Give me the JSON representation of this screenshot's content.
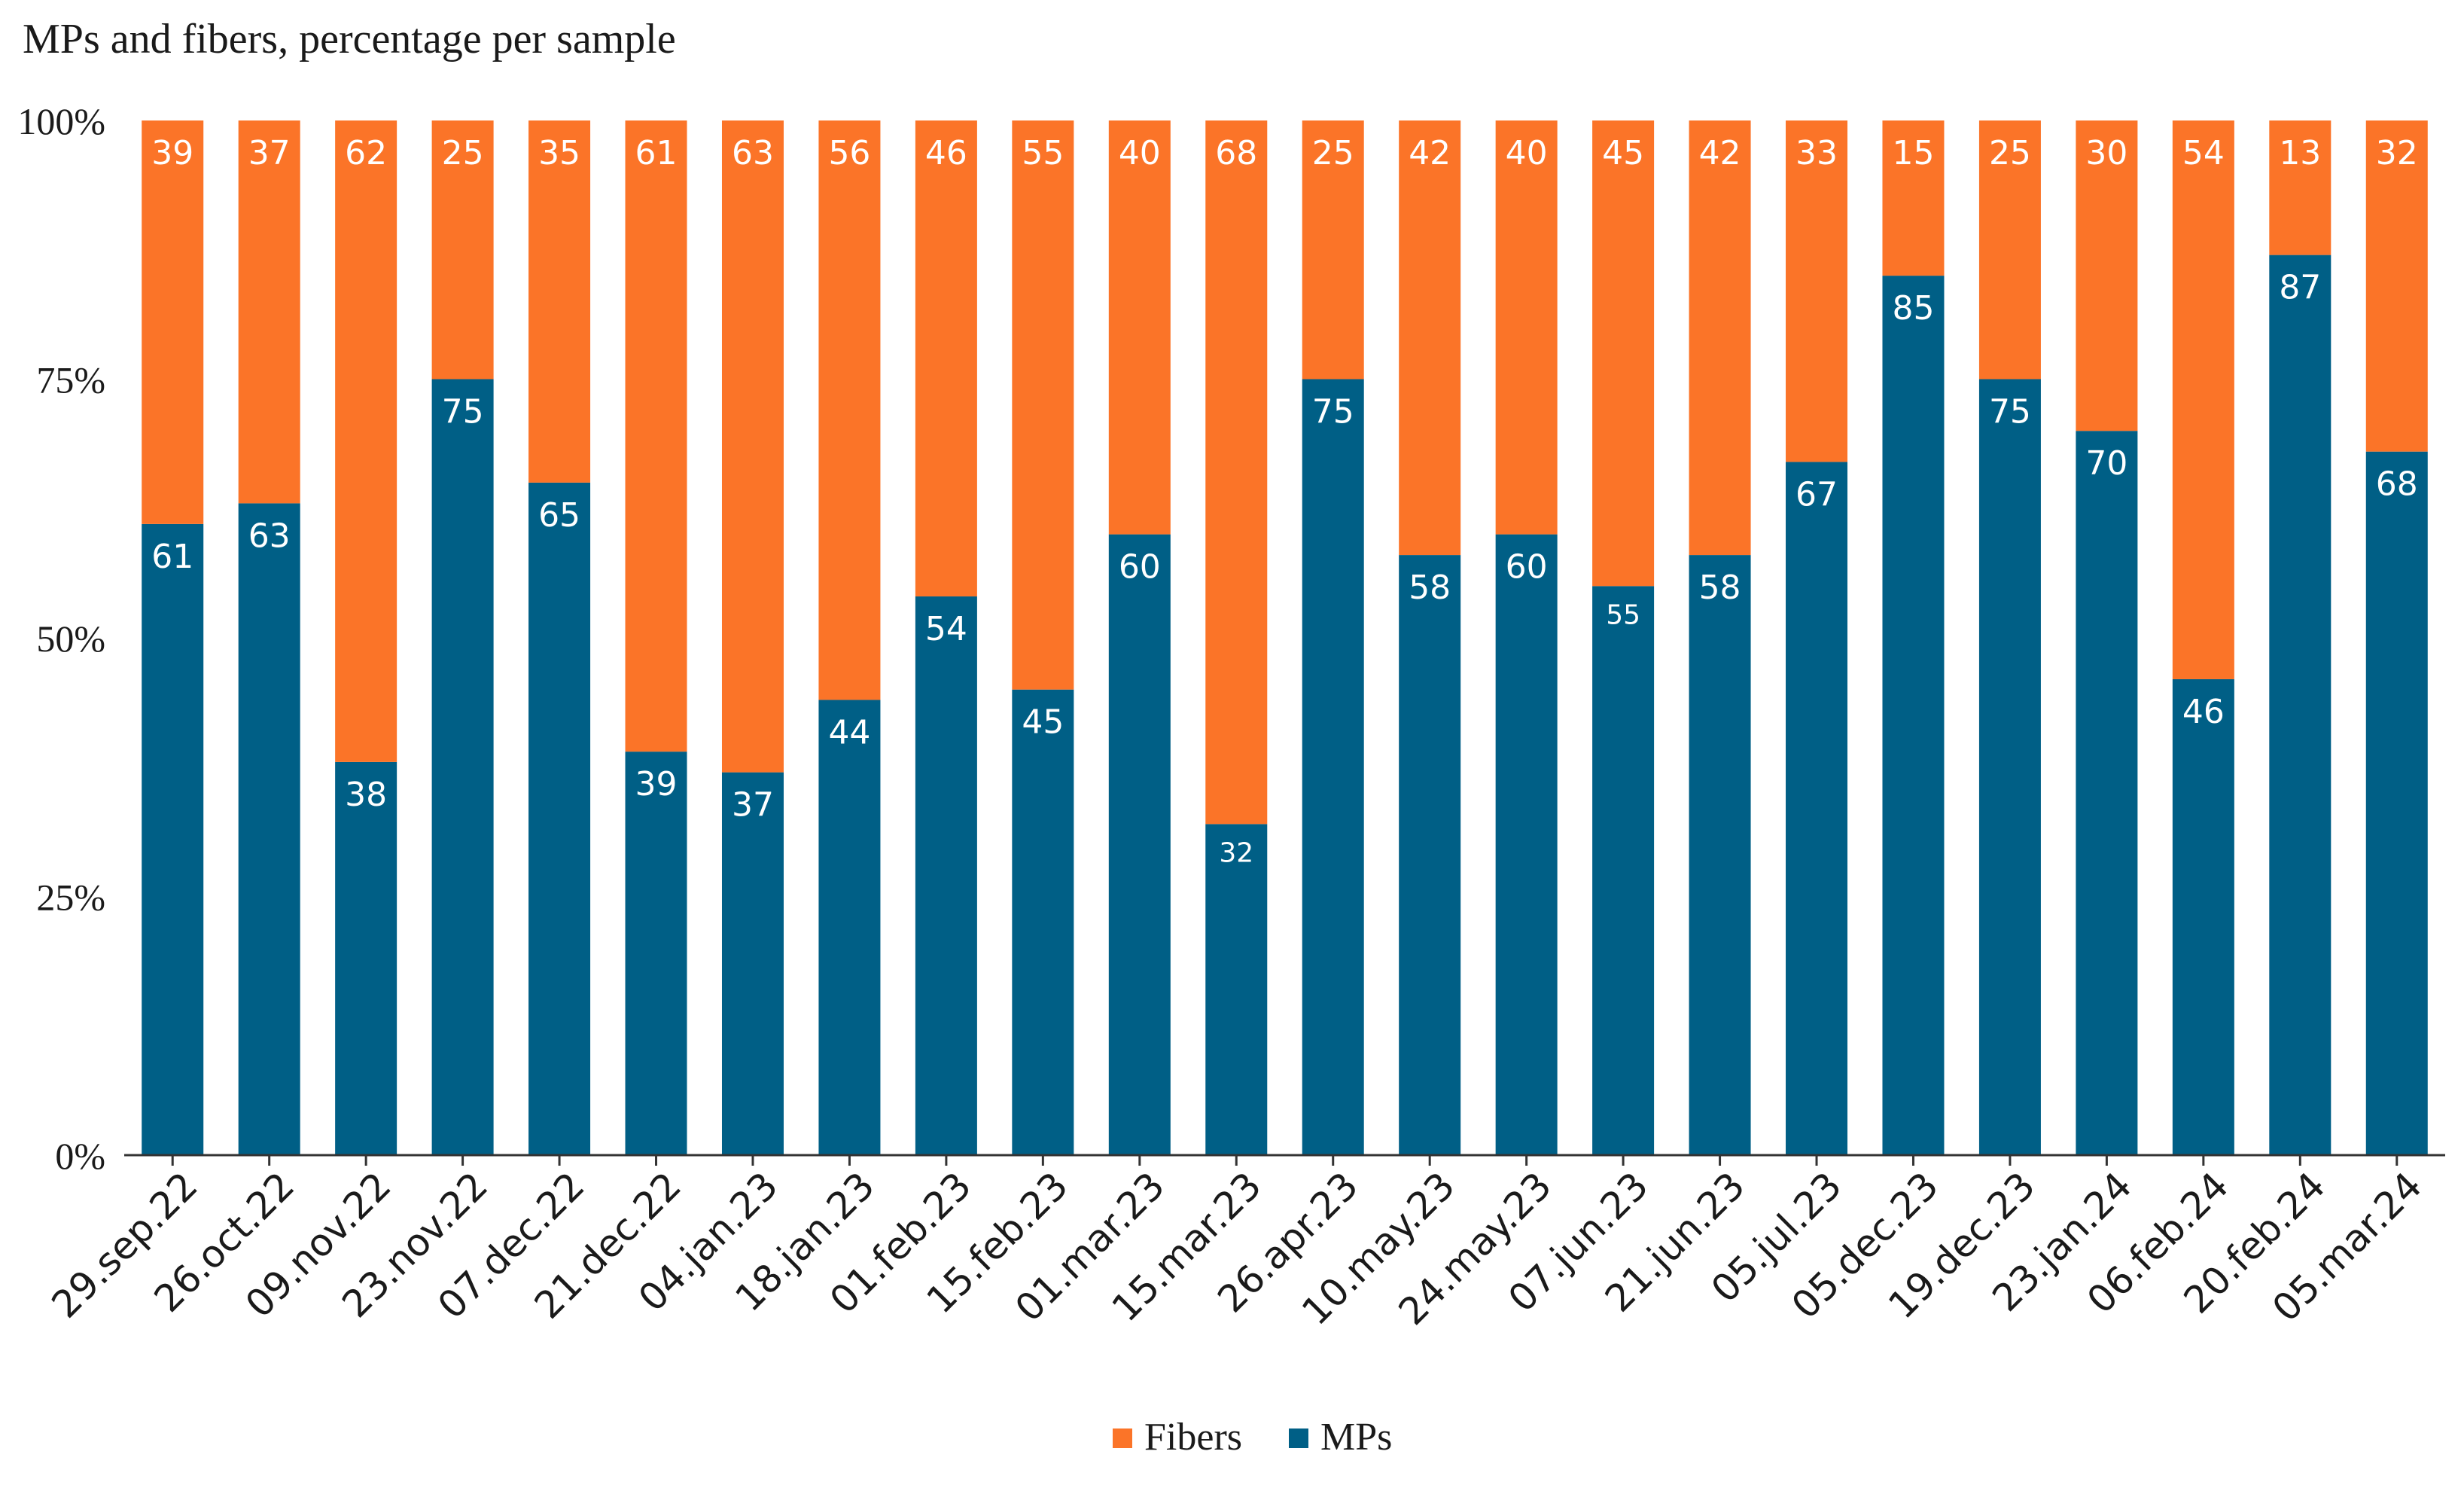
{
  "chart_data": {
    "type": "bar",
    "stacked": true,
    "normalized": true,
    "title": "MPs and fibers, percentage per sample",
    "xlabel": "",
    "ylabel": "",
    "ylim": [
      0,
      100
    ],
    "y_ticks": [
      {
        "value": 0,
        "label": "0%"
      },
      {
        "value": 25,
        "label": "25%"
      },
      {
        "value": 50,
        "label": "50%"
      },
      {
        "value": 75,
        "label": "75%"
      },
      {
        "value": 100,
        "label": "100%"
      }
    ],
    "categories": [
      "29.sep.22",
      "26.oct.22",
      "09.nov.22",
      "23.nov.22",
      "07.dec.22",
      "21.dec.22",
      "04.jan.23",
      "18.jan.23",
      "01.feb.23",
      "15.feb.23",
      "01.mar.23",
      "15.mar.23",
      "26.apr.23",
      "10.may.23",
      "24.may.23",
      "07.jun.23",
      "21.jun.23",
      "05.jul.23",
      "05.dec.23",
      "19.dec.23",
      "23.jan.24",
      "06.feb.24",
      "20.feb.24",
      "05.mar.24"
    ],
    "series": [
      {
        "name": "MPs",
        "color": "#005f86",
        "values": [
          61,
          63,
          38,
          75,
          65,
          39,
          37,
          44,
          54,
          45,
          60,
          32,
          75,
          58,
          60,
          55,
          58,
          67,
          85,
          75,
          70,
          46,
          87,
          68
        ]
      },
      {
        "name": "Fibers",
        "color": "#fb7428",
        "values": [
          39,
          37,
          62,
          25,
          35,
          61,
          63,
          56,
          46,
          55,
          40,
          68,
          25,
          42,
          40,
          45,
          42,
          33,
          15,
          25,
          30,
          54,
          13,
          32
        ]
      }
    ],
    "legend": {
      "position": "bottom-center",
      "entries": [
        "Fibers",
        "MPs"
      ]
    },
    "grid": false
  }
}
